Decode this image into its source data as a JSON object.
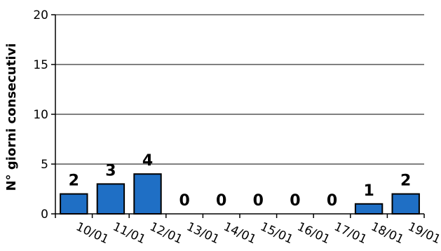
{
  "chart_data": {
    "type": "bar",
    "categories": [
      "10/01",
      "11/01",
      "12/01",
      "13/01",
      "14/01",
      "15/01",
      "16/01",
      "17/01",
      "18/01",
      "19/01"
    ],
    "values": [
      2,
      3,
      4,
      0,
      0,
      0,
      0,
      0,
      1,
      2
    ],
    "data_labels": [
      "2",
      "3",
      "4",
      "0",
      "0",
      "0",
      "0",
      "0",
      "1",
      "2"
    ],
    "ylabel": "N° giorni consecutivi",
    "xlabel": "",
    "ylim": [
      0,
      20
    ],
    "yticks": [
      0,
      5,
      10,
      15,
      20
    ],
    "ytick_labels": [
      "0",
      "5",
      "10",
      "15",
      "20"
    ],
    "grid": true,
    "bar_color": "#1f6fc5"
  }
}
